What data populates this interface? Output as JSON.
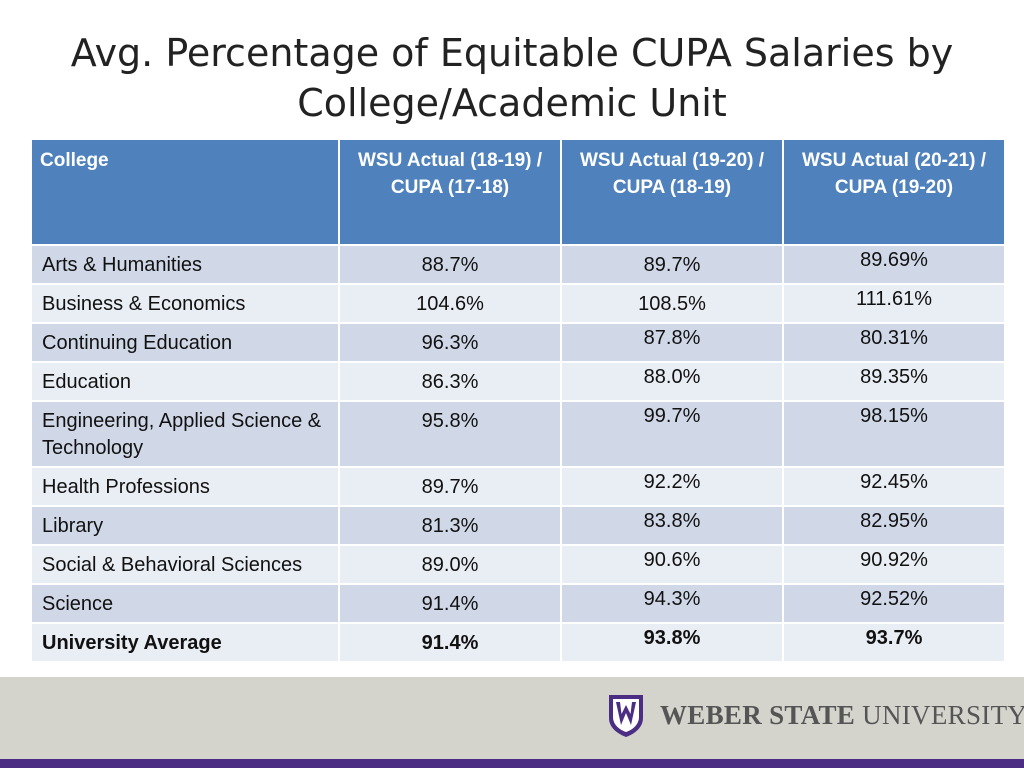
{
  "slide": {
    "title_line1": "Avg. Percentage of Equitable CUPA Salaries by",
    "title_line2": "College/Academic Unit"
  },
  "table": {
    "headers": [
      "College",
      "WSU Actual (18-19) / CUPA (17-18)",
      "WSU Actual (19-20) / CUPA (18-19)",
      "WSU Actual (20-21) / CUPA (19-20)"
    ],
    "rows": [
      [
        "Arts & Humanities",
        "88.7%",
        "89.7%",
        "89.69%"
      ],
      [
        "Business & Economics",
        "104.6%",
        "108.5%",
        "111.61%"
      ],
      [
        "Continuing Education",
        "96.3%",
        "87.8%",
        "80.31%"
      ],
      [
        "Education",
        "86.3%",
        "88.0%",
        "89.35%"
      ],
      [
        "Engineering, Applied Science & Technology",
        "95.8%",
        "99.7%",
        "98.15%"
      ],
      [
        "Health Professions",
        "89.7%",
        "92.2%",
        "92.45%"
      ],
      [
        "Library",
        "81.3%",
        "83.8%",
        "82.95%"
      ],
      [
        "Social & Behavioral Sciences",
        "89.0%",
        "90.6%",
        "90.92%"
      ],
      [
        "Science",
        "91.4%",
        "94.3%",
        "92.52%"
      ],
      [
        "University Average",
        "91.4%",
        "93.8%",
        "93.7%"
      ]
    ]
  },
  "footer": {
    "logo_bold": "WEBER STATE",
    "logo_regular": "UNIVERSITY",
    "logo_icon": "weber-state-w-shield",
    "brand_color": "#4b2e83"
  }
}
